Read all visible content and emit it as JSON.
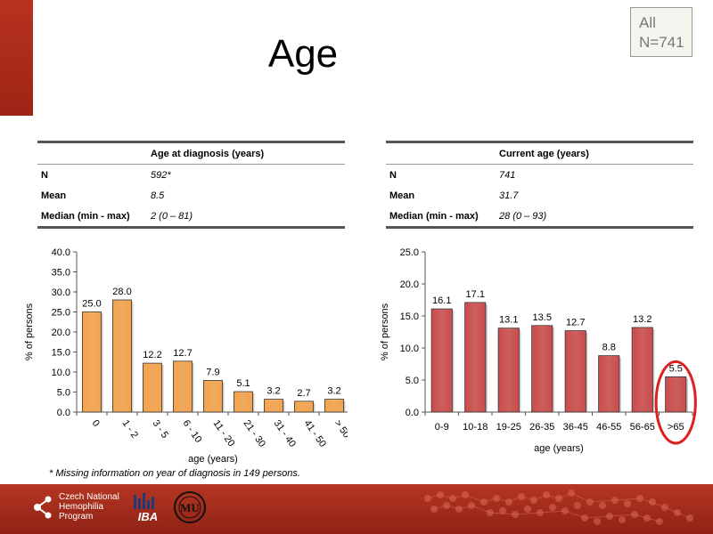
{
  "slide": {
    "title": "Age",
    "badge_line1": "All",
    "badge_line2": "N=741",
    "footnote": "* Missing information on year of diagnosis in 149 persons."
  },
  "left_table": {
    "header": "Age at diagnosis (years)",
    "rows": [
      {
        "label": "N",
        "value": "592*"
      },
      {
        "label": "Mean",
        "value": "8.5"
      },
      {
        "label": "Median (min - max)",
        "value": "2 (0 – 81)"
      }
    ]
  },
  "right_table": {
    "header": "Current age (years)",
    "rows": [
      {
        "label": "N",
        "value": "741"
      },
      {
        "label": "Mean",
        "value": "31.7"
      },
      {
        "label": "Median (min - max)",
        "value": "28 (0 – 93)"
      }
    ]
  },
  "footer": {
    "org_line1": "Czech National",
    "org_line2": "Hemophilia",
    "org_line3": "Program",
    "iba_label": "IBA",
    "mu_label": "MU"
  },
  "colors": {
    "left_bar": "#f5a34a",
    "right_bar": "#cc4b4b",
    "highlight_ring": "#dd1f1f",
    "footer": "#a52a1a"
  },
  "chart_data": [
    {
      "type": "bar",
      "title": "",
      "xlabel": "age (years)",
      "ylabel": "% of persons",
      "ylim": [
        0,
        40
      ],
      "yticks": [
        "0.0",
        "5.0",
        "10.0",
        "15.0",
        "20.0",
        "25.0",
        "30.0",
        "35.0",
        "40.0"
      ],
      "categories": [
        "0",
        "1 - 2",
        "3 - 5",
        "6 - 10",
        "11 - 20",
        "21 - 30",
        "31 - 40",
        "41 - 50",
        "> 50"
      ],
      "values": [
        25.0,
        28.0,
        12.2,
        12.7,
        7.9,
        5.1,
        3.2,
        2.7,
        3.2
      ],
      "labels": [
        "25.0",
        "28.0",
        "12.2",
        "12.7",
        "7.9",
        "5.1",
        "3.2",
        "2.7",
        "3.2"
      ],
      "tick_rotation": "diagonal"
    },
    {
      "type": "bar",
      "title": "",
      "xlabel": "age (years)",
      "ylabel": "% of persons",
      "ylim": [
        0,
        25
      ],
      "yticks": [
        "0.0",
        "5.0",
        "10.0",
        "15.0",
        "20.0",
        "25.0"
      ],
      "categories": [
        "0-9",
        "10-18",
        "19-25",
        "26-35",
        "36-45",
        "46-55",
        "56-65",
        ">65"
      ],
      "values": [
        16.1,
        17.1,
        13.1,
        13.5,
        12.7,
        8.8,
        13.2,
        5.5
      ],
      "labels": [
        "16.1",
        "17.1",
        "13.1",
        "13.5",
        "12.7",
        "8.8",
        "13.2",
        "5.5"
      ],
      "highlight": ">65"
    }
  ]
}
